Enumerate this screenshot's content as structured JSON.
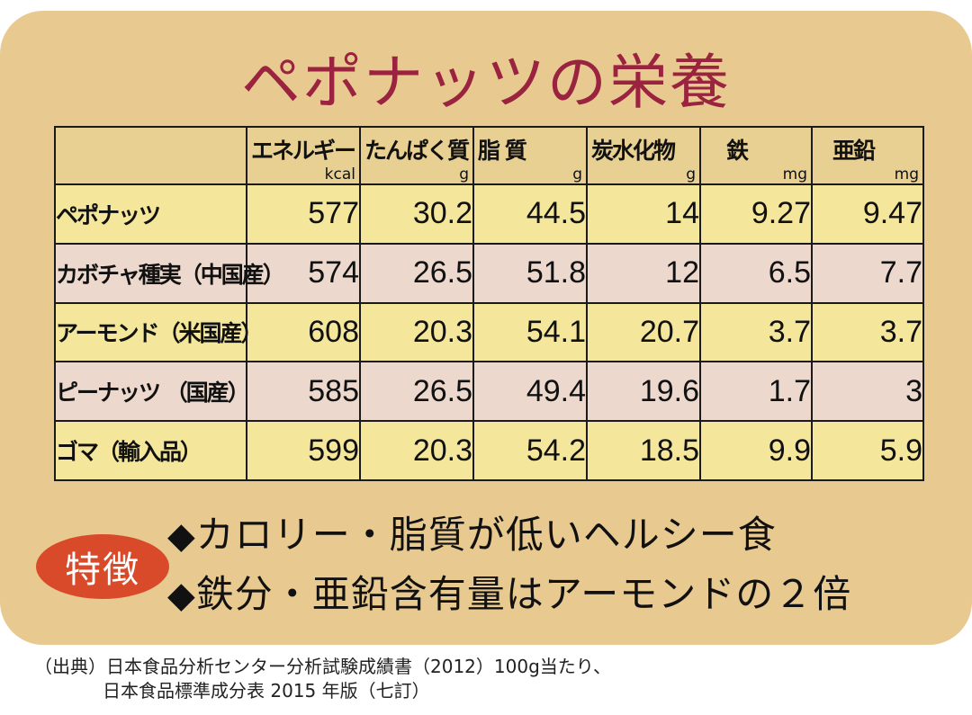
{
  "title": "ペポナッツの栄養",
  "table": {
    "headers": [
      {
        "label": "エネルギー",
        "unit": "kcal"
      },
      {
        "label": "たんぱく質",
        "unit": "g"
      },
      {
        "label": "脂 質",
        "unit": "g"
      },
      {
        "label": "炭水化物",
        "unit": "g"
      },
      {
        "label": "鉄",
        "unit": "mg"
      },
      {
        "label": "亜鉛",
        "unit": "mg"
      }
    ],
    "rows": [
      {
        "name": "ペポナッツ",
        "values": [
          "577",
          "30.2",
          "44.5",
          "14",
          "9.27",
          "9.47"
        ]
      },
      {
        "name": "カボチャ種実（中国産）",
        "values": [
          "574",
          "26.5",
          "51.8",
          "12",
          "6.5",
          "7.7"
        ]
      },
      {
        "name": "アーモンド（米国産）",
        "values": [
          "608",
          "20.3",
          "54.1",
          "20.7",
          "3.7",
          "3.7"
        ]
      },
      {
        "name": "ピーナッツ （国産）",
        "values": [
          "585",
          "26.5",
          "49.4",
          "19.6",
          "1.7",
          "3"
        ]
      },
      {
        "name": "ゴマ（輸入品）",
        "values": [
          "599",
          "20.3",
          "54.2",
          "18.5",
          "9.9",
          "5.9"
        ]
      }
    ]
  },
  "badge": "特徴",
  "features": [
    "カロリー・脂質が低いヘルシー食",
    "鉄分・亜鉛含有量はアーモンドの２倍"
  ],
  "bullet_glyph": "◆",
  "source": {
    "line1": "（出典）日本食品分析センター分析試験成績書（2012）100g当たり、",
    "line2": "日本食品標準成分表 2015 年版（七訂）"
  },
  "colors": {
    "background": "#e8c990",
    "title": "#9a2340",
    "row_yellow": "#f4e69a",
    "row_pink": "#ecd8cc",
    "badge": "#d84a2a"
  }
}
